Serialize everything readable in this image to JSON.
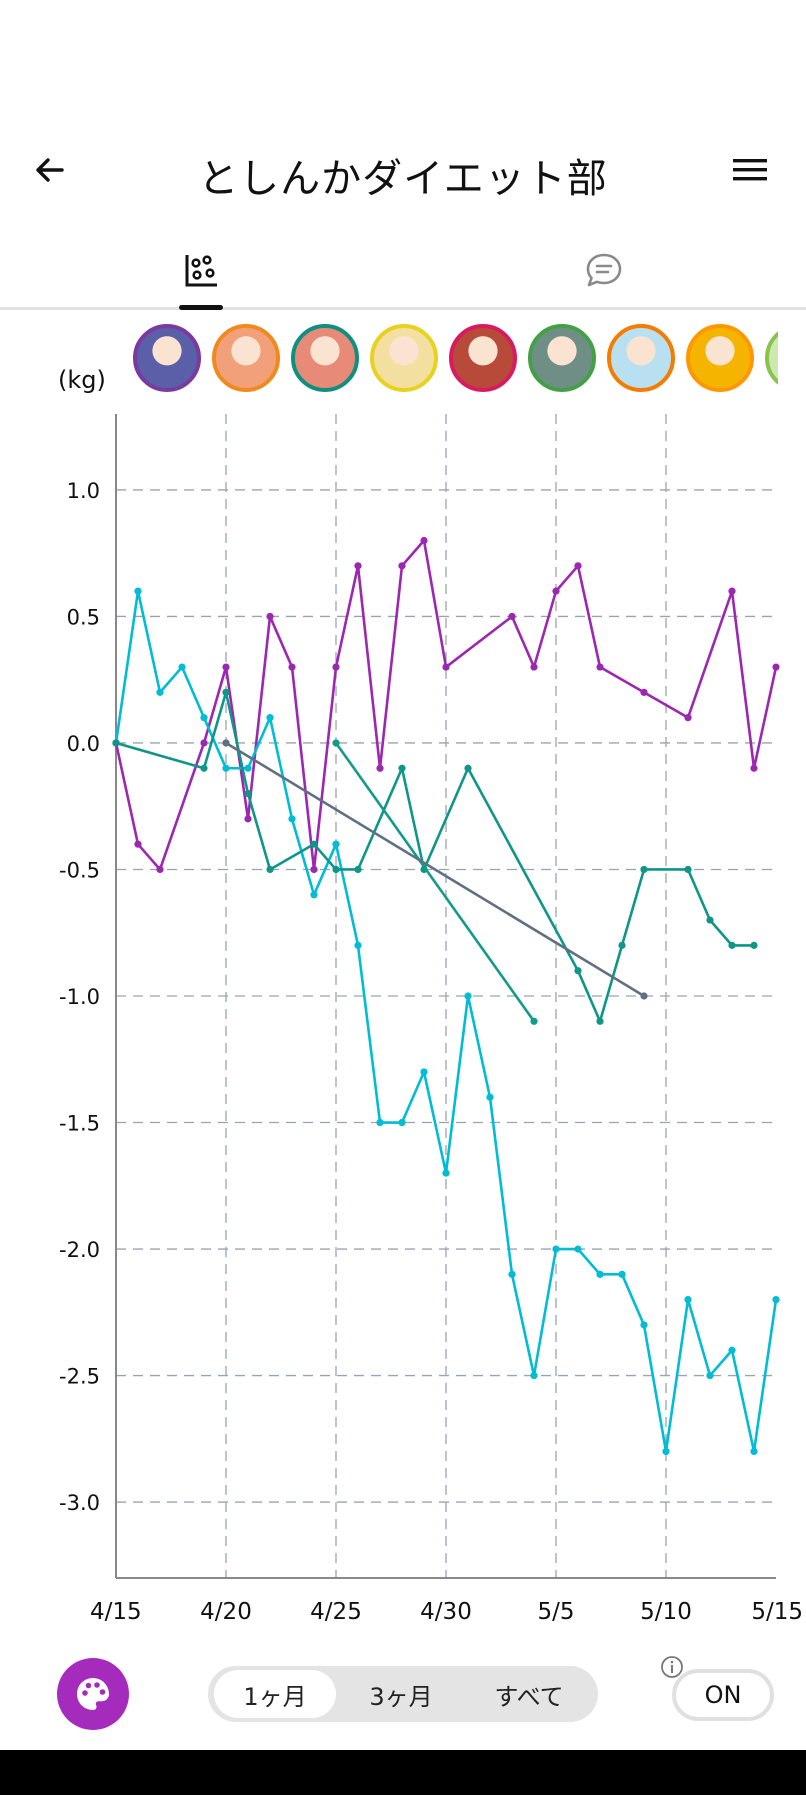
{
  "app": {
    "title": "としんかダイエット部",
    "back_icon": "arrow-left-icon",
    "menu_icon": "hamburger-menu-icon"
  },
  "tabs": [
    {
      "icon": "scatter-chart-icon",
      "selected": true
    },
    {
      "icon": "chat-bubble-icon",
      "selected": false
    }
  ],
  "members": [
    {
      "avatar": "member-avatar-1",
      "ring_color": "#7a3aa0",
      "fill": "#5b5fa8"
    },
    {
      "avatar": "member-avatar-2",
      "ring_color": "#f08a1c",
      "fill": "#f2a07a"
    },
    {
      "avatar": "member-avatar-3",
      "ring_color": "#0f8f7f",
      "fill": "#e88a78"
    },
    {
      "avatar": "member-avatar-4",
      "ring_color": "#e8d21f",
      "fill": "#f3e0a0"
    },
    {
      "avatar": "member-avatar-5",
      "ring_color": "#d81b60",
      "fill": "#b84a3a"
    },
    {
      "avatar": "member-avatar-6",
      "ring_color": "#43a047",
      "fill": "#6f8f86"
    },
    {
      "avatar": "member-avatar-7",
      "ring_color": "#f57c00",
      "fill": "#b8e0f0"
    },
    {
      "avatar": "member-avatar-8",
      "ring_color": "#ff9800",
      "fill": "#f4b400"
    },
    {
      "avatar": "member-avatar-9",
      "ring_color": "#8bc34a",
      "fill": "#cde8b0"
    }
  ],
  "chart_unit_label": "(kg)",
  "chart_data": {
    "type": "line",
    "ylabel": "(kg)",
    "x_ticks": [
      "4/15",
      "4/20",
      "4/25",
      "4/30",
      "5/5",
      "5/10",
      "5/15"
    ],
    "y_ticks": [
      "1.0",
      "0.5",
      "0.0",
      "-0.5",
      "-1.0",
      "-1.5",
      "-2.0",
      "-2.5",
      "-3.0"
    ],
    "ylim": [
      -3.3,
      1.3
    ],
    "xlim_days": [
      0,
      30
    ],
    "grid": true,
    "series": [
      {
        "color": "#9c27b0",
        "points": [
          [
            0,
            0.0
          ],
          [
            1,
            -0.4
          ],
          [
            2,
            -0.5
          ],
          [
            4,
            0.0
          ],
          [
            5,
            0.3
          ],
          [
            6,
            -0.3
          ],
          [
            7,
            0.5
          ],
          [
            8,
            0.3
          ],
          [
            9,
            -0.5
          ],
          [
            10,
            0.3
          ],
          [
            11,
            0.7
          ],
          [
            12,
            -0.1
          ],
          [
            13,
            0.7
          ],
          [
            14,
            0.8
          ],
          [
            15,
            0.3
          ],
          [
            18,
            0.5
          ],
          [
            19,
            0.3
          ],
          [
            20,
            0.6
          ],
          [
            21,
            0.7
          ],
          [
            22,
            0.3
          ],
          [
            24,
            0.2
          ],
          [
            26,
            0.1
          ],
          [
            28,
            0.6
          ],
          [
            29,
            -0.1
          ],
          [
            30,
            0.3
          ]
        ]
      },
      {
        "color": "#00bcd4",
        "points": [
          [
            0,
            0.0
          ],
          [
            1,
            0.6
          ],
          [
            2,
            0.2
          ],
          [
            3,
            0.3
          ],
          [
            4,
            0.1
          ],
          [
            5,
            -0.1
          ],
          [
            6,
            -0.1
          ],
          [
            7,
            0.1
          ],
          [
            8,
            -0.3
          ],
          [
            9,
            -0.6
          ],
          [
            10,
            -0.4
          ],
          [
            11,
            -0.8
          ],
          [
            12,
            -1.5
          ],
          [
            13,
            -1.5
          ],
          [
            14,
            -1.3
          ],
          [
            15,
            -1.7
          ],
          [
            16,
            -1.0
          ],
          [
            17,
            -1.4
          ],
          [
            18,
            -2.1
          ],
          [
            19,
            -2.5
          ],
          [
            20,
            -2.0
          ],
          [
            21,
            -2.0
          ],
          [
            22,
            -2.1
          ],
          [
            23,
            -2.1
          ],
          [
            24,
            -2.3
          ],
          [
            25,
            -2.8
          ],
          [
            26,
            -2.2
          ],
          [
            27,
            -2.5
          ],
          [
            28,
            -2.4
          ],
          [
            29,
            -2.8
          ],
          [
            30,
            -2.2
          ]
        ]
      },
      {
        "color": "#0f9688",
        "points": [
          [
            0,
            0.0
          ],
          [
            4,
            -0.1
          ],
          [
            5,
            0.2
          ],
          [
            6,
            -0.2
          ],
          [
            7,
            -0.5
          ],
          [
            9,
            -0.4
          ],
          [
            10,
            -0.5
          ],
          [
            11,
            -0.5
          ],
          [
            13,
            -0.1
          ],
          [
            14,
            -0.5
          ],
          [
            16,
            -0.1
          ],
          [
            21,
            -0.9
          ],
          [
            22,
            -1.1
          ],
          [
            23,
            -0.8
          ],
          [
            24,
            -0.5
          ],
          [
            26,
            -0.5
          ],
          [
            27,
            -0.7
          ],
          [
            28,
            -0.8
          ],
          [
            29,
            -0.8
          ]
        ]
      },
      {
        "color": "#129b8a",
        "points": [
          [
            10,
            0.0
          ],
          [
            19,
            -1.1
          ]
        ]
      },
      {
        "color": "#607080",
        "points": [
          [
            5,
            0.0
          ],
          [
            24,
            -1.0
          ]
        ]
      }
    ]
  },
  "controls": {
    "palette_icon": "palette-icon",
    "range_options": [
      "1ヶ月",
      "3ヶ月",
      "すべて"
    ],
    "selected_range": "1ヶ月",
    "info_icon": "info-icon",
    "toggle_label": "ON"
  }
}
